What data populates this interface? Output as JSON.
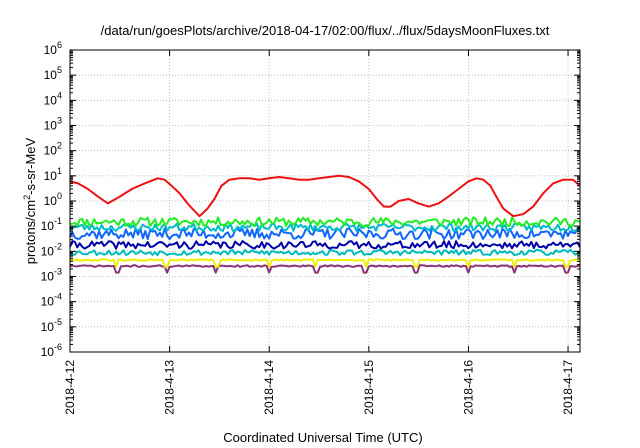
{
  "chart_data": {
    "type": "line",
    "title": "/data/run/goesPlots/archive/2018-04-17/02:00/flux/../flux/5daysMoonFluxes.txt",
    "xlabel": "Coordinated Universal Time (UTC)",
    "ylabel": "protons/cm²-s-sr-MeV",
    "ylabel_parts": {
      "pre": "protons/cm",
      "sup": "2",
      "post": "-s-sr-MeV"
    },
    "yscale": "log",
    "ylim_exp": [
      -6,
      6
    ],
    "y_tick_exponents": [
      -6,
      -5,
      -4,
      -3,
      -2,
      -1,
      0,
      1,
      2,
      3,
      4,
      5,
      6
    ],
    "y_tick_base": "10",
    "xlim_days": [
      0,
      5.12
    ],
    "x_ticks": [
      {
        "day": 0,
        "label": "2018-4-12"
      },
      {
        "day": 1,
        "label": "2018-4-13"
      },
      {
        "day": 2,
        "label": "2018-4-14"
      },
      {
        "day": 3,
        "label": "2018-4-15"
      },
      {
        "day": 4,
        "label": "2018-4-16"
      },
      {
        "day": 5,
        "label": "2018-4-17"
      }
    ],
    "grid": true,
    "series": [
      {
        "color": "#ee1111",
        "x": [
          0,
          0.08,
          0.18,
          0.28,
          0.38,
          0.5,
          0.62,
          0.75,
          0.88,
          0.95,
          1.02,
          1.1,
          1.18,
          1.25,
          1.3,
          1.38,
          1.45,
          1.52,
          1.6,
          1.7,
          1.8,
          1.9,
          2.0,
          2.1,
          2.2,
          2.3,
          2.4,
          2.5,
          2.6,
          2.7,
          2.8,
          2.9,
          3.0,
          3.08,
          3.15,
          3.22,
          3.3,
          3.4,
          3.5,
          3.6,
          3.7,
          3.8,
          3.9,
          4.0,
          4.08,
          4.15,
          4.22,
          4.28,
          4.35,
          4.45,
          4.55,
          4.65,
          4.75,
          4.85,
          4.95,
          5.05,
          5.12
        ],
        "y": [
          6,
          5,
          3,
          1.5,
          0.8,
          1.5,
          3,
          5,
          8,
          7,
          4,
          2,
          0.8,
          0.4,
          0.25,
          0.5,
          1.2,
          4,
          7,
          8,
          8,
          7,
          8,
          9,
          8,
          7,
          7,
          8,
          9,
          10,
          9,
          6,
          3,
          1.2,
          0.6,
          0.6,
          1,
          1.2,
          0.8,
          0.6,
          0.8,
          1.5,
          3,
          6,
          8,
          7,
          4,
          1.5,
          0.5,
          0.25,
          0.3,
          0.6,
          2,
          5,
          7,
          7,
          4
        ]
      },
      {
        "color": "#22ee22",
        "mean": 0.15,
        "var": 0.8,
        "seed": 11
      },
      {
        "color": "#00bbcc",
        "mean": 0.09,
        "var": 0.7,
        "seed": 23
      },
      {
        "color": "#1166ff",
        "mean": 0.05,
        "var": 1.0,
        "seed": 37
      },
      {
        "color": "#0000aa",
        "mean": 0.018,
        "var": 0.7,
        "seed": 41
      },
      {
        "color": "#00bbbb",
        "mean": 0.009,
        "var": 0.5,
        "seed": 53
      },
      {
        "color": "#eeee00",
        "mean": 0.0045,
        "var": 0.15,
        "seed": 61
      },
      {
        "color": "#883377",
        "mean": 0.0026,
        "var": 0.15,
        "seed": 71
      }
    ]
  }
}
